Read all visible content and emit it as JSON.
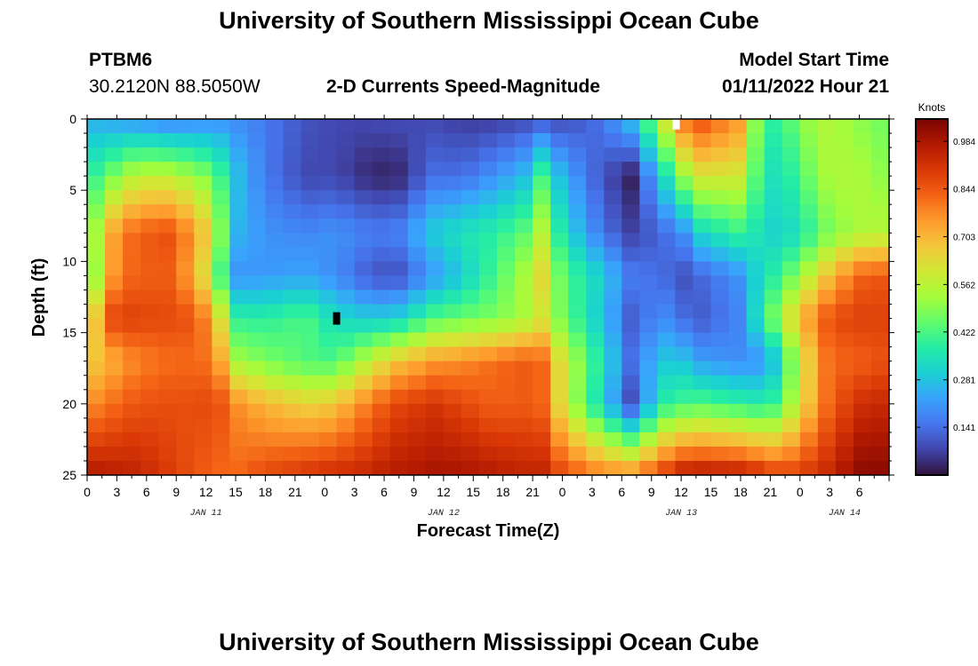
{
  "header": {
    "title": "University of Southern Mississippi Ocean Cube",
    "station_id": "PTBM6",
    "station_coords": "30.2120N  88.5050W",
    "plot_name": "2-D Currents Speed-Magnitude",
    "model_label": "Model Start Time",
    "model_time": "01/11/2022 Hour 21"
  },
  "footer": {
    "title": "University of Southern Mississippi Ocean Cube"
  },
  "chart_data": {
    "type": "heatmap",
    "title": "2-D Currents Speed-Magnitude",
    "xlabel": "Forecast Time(Z)",
    "ylabel": "Depth (ft)",
    "units": "Knots",
    "x_hours_from_jan11_00": [
      0,
      81
    ],
    "x_tick_step_hours": 3,
    "x_tick_labels": [
      "0",
      "3",
      "6",
      "9",
      "12",
      "15",
      "18",
      "21",
      "0",
      "3",
      "6",
      "9",
      "12",
      "15",
      "18",
      "21",
      "0",
      "3",
      "6",
      "9",
      "12",
      "15",
      "18",
      "21",
      "0",
      "3",
      "6"
    ],
    "date_labels": [
      {
        "label": "JAN 11",
        "hour": 12
      },
      {
        "label": "JAN 12",
        "hour": 36
      },
      {
        "label": "JAN 13",
        "hour": 60
      },
      {
        "label": "JAN 14",
        "hour": 76.5
      }
    ],
    "ylim": [
      0,
      25
    ],
    "y_ticks": [
      0,
      5,
      10,
      15,
      20,
      25
    ],
    "y_tick_labels": [
      "0",
      "5",
      "10",
      "15",
      "20",
      "25"
    ],
    "colorbar": {
      "min": 0.0,
      "max": 1.05,
      "ticks": [
        0.984,
        0.844,
        0.703,
        0.562,
        0.422,
        0.281,
        0.141
      ],
      "tick_labels": [
        "0.984",
        "0.844",
        "0.703",
        "0.562",
        "0.422",
        "0.281",
        "0.141"
      ]
    },
    "colormap": [
      "#30123b",
      "#4145ab",
      "#4675ed",
      "#39a2fc",
      "#1bcfd4",
      "#24eca6",
      "#61fc6c",
      "#a4fc3b",
      "#d1e834",
      "#f3c63a",
      "#fe9b2d",
      "#f36315",
      "#d93806",
      "#b11901",
      "#7a0402"
    ],
    "grid_cols": 45,
    "grid_rows": 25,
    "time_anchors_hours": [
      0,
      3,
      5,
      8,
      11,
      13,
      15,
      18,
      22,
      25,
      28,
      31,
      35,
      38,
      41,
      44,
      46,
      48,
      52,
      55,
      58,
      60,
      62,
      66,
      68,
      70,
      72,
      75,
      78,
      81
    ],
    "depth_anchors_ft": [
      0,
      4,
      8,
      11,
      14,
      17,
      20,
      25
    ],
    "speed_knots": [
      [
        0.25,
        0.22,
        0.2,
        0.17,
        0.18,
        0.2,
        0.19,
        0.16,
        0.1,
        0.08,
        0.08,
        0.09,
        0.08,
        0.06,
        0.06,
        0.08,
        0.1,
        0.08,
        0.15,
        0.28,
        0.55,
        0.8,
        0.86,
        0.75,
        0.42,
        0.37,
        0.5,
        0.55,
        0.5,
        0.46
      ],
      [
        0.37,
        0.49,
        0.57,
        0.57,
        0.52,
        0.45,
        0.28,
        0.16,
        0.08,
        0.08,
        0.04,
        0.02,
        0.14,
        0.14,
        0.2,
        0.26,
        0.42,
        0.25,
        0.1,
        0.02,
        0.3,
        0.5,
        0.61,
        0.6,
        0.39,
        0.32,
        0.43,
        0.54,
        0.54,
        0.49
      ],
      [
        0.44,
        0.77,
        0.83,
        0.86,
        0.75,
        0.57,
        0.26,
        0.2,
        0.18,
        0.2,
        0.17,
        0.16,
        0.3,
        0.35,
        0.38,
        0.44,
        0.56,
        0.34,
        0.15,
        0.07,
        0.13,
        0.18,
        0.32,
        0.4,
        0.34,
        0.3,
        0.35,
        0.48,
        0.54,
        0.55
      ],
      [
        0.4,
        0.79,
        0.83,
        0.84,
        0.71,
        0.48,
        0.2,
        0.21,
        0.23,
        0.19,
        0.12,
        0.08,
        0.21,
        0.3,
        0.41,
        0.53,
        0.64,
        0.44,
        0.3,
        0.16,
        0.14,
        0.09,
        0.13,
        0.2,
        0.33,
        0.4,
        0.51,
        0.69,
        0.83,
        0.85
      ],
      [
        0.58,
        0.91,
        0.88,
        0.87,
        0.85,
        0.69,
        0.39,
        0.38,
        0.43,
        0.33,
        0.3,
        0.3,
        0.43,
        0.46,
        0.48,
        0.53,
        0.6,
        0.46,
        0.28,
        0.11,
        0.2,
        0.14,
        0.11,
        0.18,
        0.37,
        0.53,
        0.7,
        0.86,
        0.89,
        0.88
      ],
      [
        0.65,
        0.73,
        0.78,
        0.81,
        0.82,
        0.79,
        0.53,
        0.48,
        0.43,
        0.42,
        0.55,
        0.67,
        0.75,
        0.77,
        0.81,
        0.84,
        0.82,
        0.6,
        0.35,
        0.14,
        0.29,
        0.29,
        0.22,
        0.19,
        0.2,
        0.31,
        0.59,
        0.82,
        0.83,
        0.86
      ],
      [
        0.76,
        0.82,
        0.85,
        0.86,
        0.86,
        0.88,
        0.77,
        0.7,
        0.65,
        0.67,
        0.78,
        0.87,
        0.91,
        0.87,
        0.83,
        0.84,
        0.82,
        0.6,
        0.31,
        0.08,
        0.37,
        0.41,
        0.43,
        0.39,
        0.37,
        0.41,
        0.62,
        0.83,
        0.92,
        0.94
      ],
      [
        0.98,
        0.96,
        0.95,
        0.9,
        0.85,
        0.82,
        0.82,
        0.87,
        0.91,
        0.93,
        0.94,
        0.97,
        0.99,
        0.99,
        0.97,
        0.95,
        0.95,
        0.87,
        0.79,
        0.78,
        0.89,
        0.97,
        0.98,
        0.97,
        0.93,
        0.88,
        0.89,
        0.94,
        1.03,
        1.03
      ]
    ],
    "annotations": [
      {
        "type": "marker",
        "color": "#000000",
        "hour": 25.2,
        "depth_ft": 14
      },
      {
        "type": "marker",
        "color": "#ffffff",
        "hour": 59.5,
        "depth_ft": 0.3
      }
    ]
  }
}
